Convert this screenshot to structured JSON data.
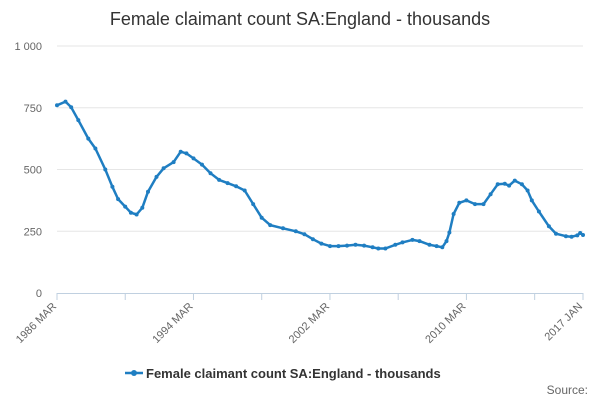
{
  "chart_data": {
    "type": "line",
    "title": "Female claimant count SA:England - thousands",
    "xlabel": "",
    "ylabel": "",
    "ylim": [
      0,
      1000
    ],
    "y_ticks": [
      "0",
      "250",
      "500",
      "750",
      "1 000"
    ],
    "x_range": [
      "1986-03",
      "2017-01"
    ],
    "x_tick_labels": [
      {
        "date": "1986-03",
        "label": "1986 MAR"
      },
      {
        "date": "1994-03",
        "label": "1994 MAR"
      },
      {
        "date": "2002-03",
        "label": "2002 MAR"
      },
      {
        "date": "2010-03",
        "label": "2010 MAR"
      },
      {
        "date": "2017-01",
        "label": "2017 JAN"
      }
    ],
    "grid": true,
    "legend_position": "bottom",
    "series": [
      {
        "name": "Female claimant count SA:England - thousands",
        "color": "#1f7ec2",
        "points": [
          [
            "1986-03",
            760
          ],
          [
            "1986-09",
            775
          ],
          [
            "1987-01",
            752
          ],
          [
            "1987-06",
            700
          ],
          [
            "1988-01",
            625
          ],
          [
            "1988-06",
            585
          ],
          [
            "1989-01",
            500
          ],
          [
            "1989-06",
            430
          ],
          [
            "1989-10",
            380
          ],
          [
            "1990-03",
            350
          ],
          [
            "1990-07",
            325
          ],
          [
            "1990-11",
            318
          ],
          [
            "1991-03",
            345
          ],
          [
            "1991-07",
            410
          ],
          [
            "1992-01",
            470
          ],
          [
            "1992-06",
            505
          ],
          [
            "1993-01",
            530
          ],
          [
            "1993-06",
            572
          ],
          [
            "1993-10",
            565
          ],
          [
            "1994-03",
            545
          ],
          [
            "1994-09",
            520
          ],
          [
            "1995-03",
            485
          ],
          [
            "1995-09",
            458
          ],
          [
            "1996-03",
            445
          ],
          [
            "1996-09",
            432
          ],
          [
            "1997-03",
            415
          ],
          [
            "1997-09",
            360
          ],
          [
            "1998-03",
            305
          ],
          [
            "1998-09",
            275
          ],
          [
            "1999-06",
            262
          ],
          [
            "2000-03",
            250
          ],
          [
            "2000-09",
            238
          ],
          [
            "2001-03",
            218
          ],
          [
            "2001-09",
            200
          ],
          [
            "2002-03",
            190
          ],
          [
            "2002-09",
            190
          ],
          [
            "2003-03",
            192
          ],
          [
            "2003-09",
            195
          ],
          [
            "2004-03",
            192
          ],
          [
            "2004-09",
            185
          ],
          [
            "2005-01",
            180
          ],
          [
            "2005-06",
            180
          ],
          [
            "2006-01",
            195
          ],
          [
            "2006-06",
            205
          ],
          [
            "2007-01",
            215
          ],
          [
            "2007-06",
            210
          ],
          [
            "2008-01",
            195
          ],
          [
            "2008-06",
            190
          ],
          [
            "2008-10",
            185
          ],
          [
            "2009-01",
            210
          ],
          [
            "2009-03",
            245
          ],
          [
            "2009-06",
            320
          ],
          [
            "2009-10",
            365
          ],
          [
            "2010-03",
            375
          ],
          [
            "2010-09",
            360
          ],
          [
            "2011-03",
            360
          ],
          [
            "2011-08",
            400
          ],
          [
            "2012-01",
            440
          ],
          [
            "2012-06",
            442
          ],
          [
            "2012-09",
            435
          ],
          [
            "2013-01",
            455
          ],
          [
            "2013-06",
            440
          ],
          [
            "2013-10",
            415
          ],
          [
            "2014-01",
            375
          ],
          [
            "2014-06",
            330
          ],
          [
            "2015-01",
            270
          ],
          [
            "2015-06",
            240
          ],
          [
            "2016-01",
            230
          ],
          [
            "2016-05",
            228
          ],
          [
            "2016-09",
            233
          ],
          [
            "2016-11",
            243
          ],
          [
            "2017-01",
            235
          ]
        ]
      }
    ]
  },
  "legend": {
    "label": "Female claimant count SA:England - thousands"
  },
  "source": {
    "label": "Source:"
  }
}
